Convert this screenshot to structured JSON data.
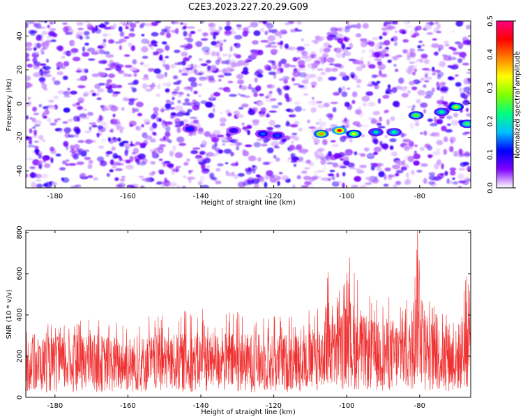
{
  "title": "C2E3.2023.227.20.29.G09",
  "chart_data": [
    {
      "type": "heatmap",
      "xlabel": "Height of straight line (km)",
      "ylabel": "Frequency (Hz)",
      "xlim": [
        -188,
        -66
      ],
      "ylim": [
        -50,
        49
      ],
      "xticks": [
        -180,
        -160,
        -140,
        -120,
        -100,
        -80
      ],
      "xtick_labels": [
        "-180",
        "-160",
        "-140",
        "-120",
        "-100",
        "-80"
      ],
      "yticks": [
        -40,
        -20,
        0,
        20,
        40
      ],
      "ytick_labels": [
        "-40",
        "-20",
        "0",
        "20",
        "40"
      ],
      "grid": false,
      "colorbar": {
        "label": "Normalized spectral amplitude",
        "range": [
          0.0,
          0.5
        ],
        "ticks": [
          0.0,
          0.1,
          0.2,
          0.3,
          0.4,
          0.5
        ],
        "tick_labels": [
          "0.0",
          "0.1",
          "0.2",
          "0.3",
          "0.4",
          "0.5"
        ],
        "colormap": [
          "#ffffff",
          "#8000ff",
          "#0000ff",
          "#00c0ff",
          "#00ff80",
          "#80ff00",
          "#ffff00",
          "#ff8000",
          "#ff0000",
          "#ff0080"
        ]
      },
      "background_noise_level": 0.06,
      "signal_track": {
        "description": "horizontal Doppler trace",
        "points": [
          {
            "x": -143,
            "y": -15,
            "value": 0.12
          },
          {
            "x": -131,
            "y": -16,
            "value": 0.1
          },
          {
            "x": -123,
            "y": -18,
            "value": 0.14
          },
          {
            "x": -119,
            "y": -19,
            "value": 0.13
          },
          {
            "x": -107,
            "y": -18,
            "value": 0.38
          },
          {
            "x": -102,
            "y": -16,
            "value": 0.45
          },
          {
            "x": -98,
            "y": -18,
            "value": 0.32
          },
          {
            "x": -92,
            "y": -17,
            "value": 0.2
          },
          {
            "x": -87,
            "y": -17,
            "value": 0.22
          },
          {
            "x": -81,
            "y": -7,
            "value": 0.28
          },
          {
            "x": -74,
            "y": -5,
            "value": 0.22
          },
          {
            "x": -70,
            "y": -2,
            "value": 0.3
          },
          {
            "x": -67,
            "y": -12,
            "value": 0.25
          }
        ]
      }
    },
    {
      "type": "line",
      "xlabel": "Height of straight line (km)",
      "ylabel": "SNR (10 * v/v)",
      "xlim": [
        -188,
        -66
      ],
      "ylim": [
        0,
        810
      ],
      "xticks": [
        -180,
        -160,
        -140,
        -120,
        -100,
        -80
      ],
      "xtick_labels": [
        "-180",
        "-160",
        "-140",
        "-120",
        "-100",
        "-80"
      ],
      "yticks": [
        0,
        200,
        400,
        600,
        800
      ],
      "ytick_labels": [
        "0",
        "200",
        "400",
        "600",
        "800"
      ],
      "color": "#f03030",
      "grid": false,
      "series": [
        {
          "description": "noisy SNR trace; envelope values below",
          "x": [
            -188,
            -180,
            -170,
            -160,
            -150,
            -140,
            -130,
            -120,
            -110,
            -107,
            -105,
            -103,
            -101,
            -99,
            -96,
            -92,
            -88,
            -84,
            -82,
            -80.5,
            -79.5,
            -78,
            -74,
            -70,
            -67,
            -66
          ],
          "y_mean": [
            160,
            160,
            165,
            160,
            165,
            170,
            170,
            165,
            175,
            200,
            260,
            200,
            240,
            260,
            220,
            200,
            210,
            200,
            210,
            500,
            300,
            210,
            190,
            180,
            260,
            230
          ],
          "y_peak": [
            350,
            360,
            380,
            370,
            430,
            440,
            440,
            430,
            430,
            450,
            660,
            480,
            690,
            690,
            520,
            480,
            500,
            480,
            460,
            830,
            520,
            480,
            440,
            380,
            630,
            580
          ]
        }
      ]
    }
  ]
}
